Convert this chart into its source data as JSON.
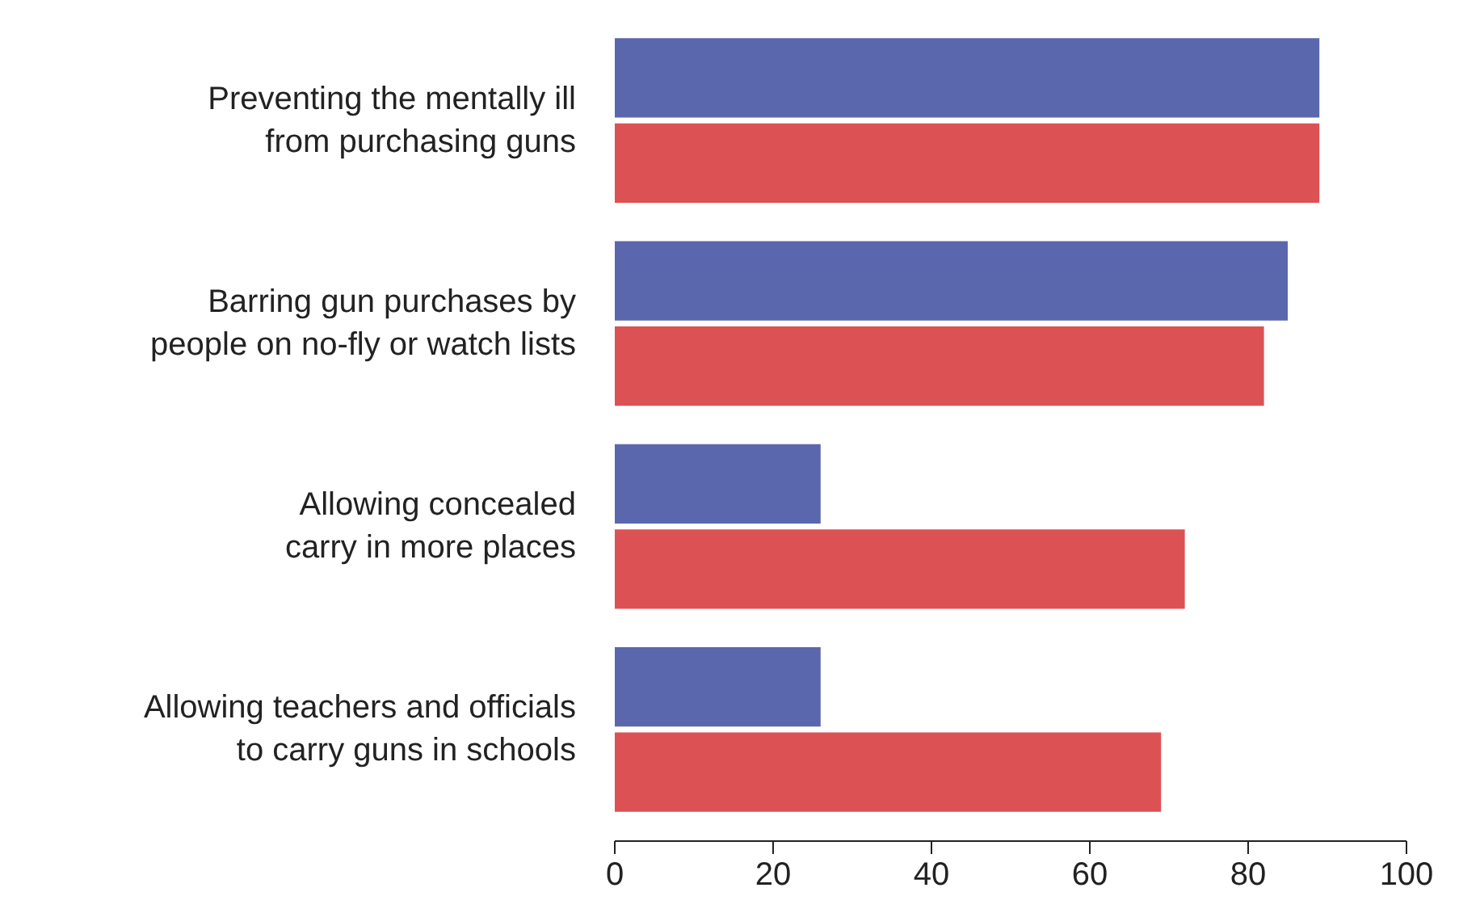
{
  "chart_data": {
    "type": "bar",
    "orientation": "horizontal",
    "categories": [
      "Preventing the mentally ill\nfrom purchasing guns",
      "Barring gun purchases by\npeople on no-fly or watch lists",
      "Allowing concealed\ncarry in more places",
      "Allowing teachers and officials\nto carry guns in schools"
    ],
    "series": [
      {
        "color": "#5b67ad",
        "values": [
          89,
          85,
          26,
          26
        ]
      },
      {
        "color": "#dc5154",
        "values": [
          89,
          82,
          72,
          69
        ]
      }
    ],
    "xlim": [
      0,
      100
    ],
    "xticks": [
      0,
      20,
      40,
      60,
      80,
      100
    ],
    "grid": false
  }
}
